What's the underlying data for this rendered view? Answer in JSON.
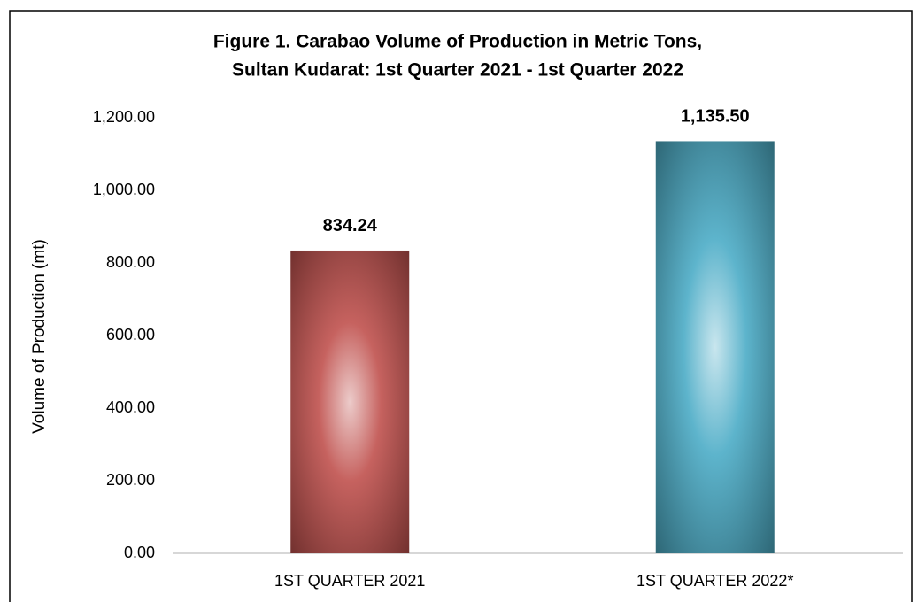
{
  "chart_data": {
    "type": "bar",
    "title": [
      "Figure 1. Carabao Volume of Production in Metric Tons,",
      "Sultan Kudarat: 1st Quarter 2021 - 1st Quarter 2022"
    ],
    "y_label": "Volume of Production (mt)",
    "categories": [
      "1ST QUARTER 2021",
      "1ST QUARTER 2022*"
    ],
    "values": [
      834.24,
      1135.5
    ],
    "value_labels": [
      "834.24",
      "1,135.50"
    ],
    "colors": [
      "#c0504d",
      "#4bacc6"
    ],
    "ylim": [
      0,
      1200
    ],
    "yticks": [
      {
        "value": 0,
        "label": "0.00"
      },
      {
        "value": 200,
        "label": "200.00"
      },
      {
        "value": 400,
        "label": "400.00"
      },
      {
        "value": 600,
        "label": "600.00"
      },
      {
        "value": 800,
        "label": "800.00"
      },
      {
        "value": 1000,
        "label": "1,000.00"
      },
      {
        "value": 1200,
        "label": "1,200.00"
      }
    ],
    "grid": false
  }
}
